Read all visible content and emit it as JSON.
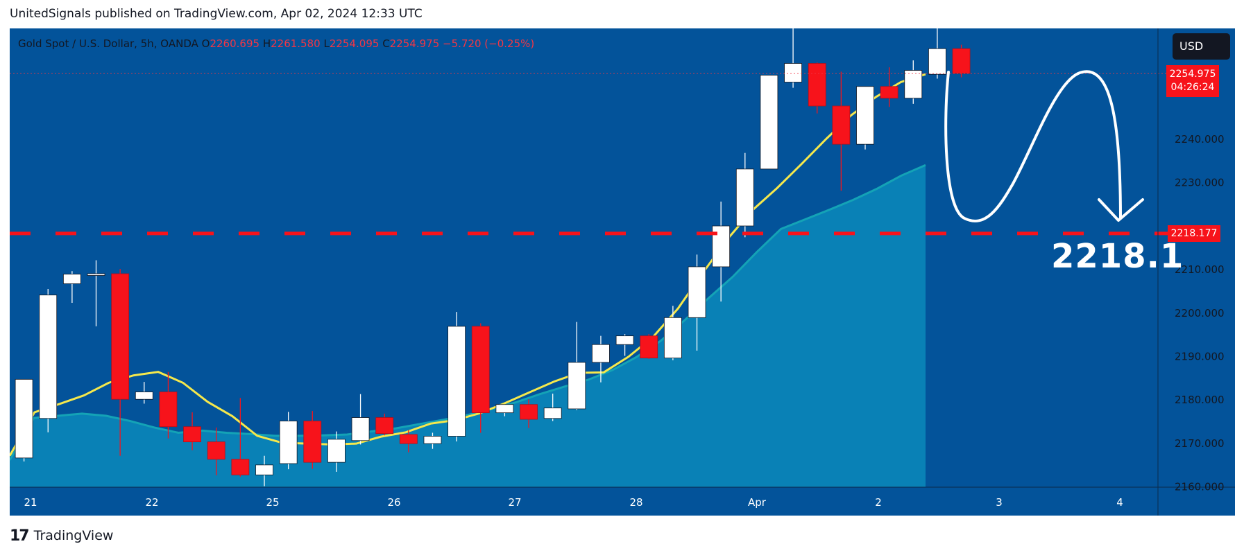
{
  "header": {
    "published_line": "UnitedSignals published on TradingView.com, Apr 02, 2024 12:33 UTC"
  },
  "legend": {
    "symbol": "Gold Spot / U.S. Dollar, 5h, OANDA",
    "open_key": "O",
    "open": "2260.695",
    "high_key": "H",
    "high": "2261.580",
    "low_key": "L",
    "low": "2254.095",
    "close_key": "C",
    "close": "2254.975",
    "change": "−5.720 (−0.25%)"
  },
  "currency": "USD",
  "price_tag": {
    "price": "2254.975",
    "countdown": "04:26:24"
  },
  "level_tag": "2218.177",
  "target_label": "2218.1",
  "footer": {
    "brand_mark": "17",
    "brand": "TradingView"
  },
  "colors": {
    "background": "#03539a",
    "up": "#ffffff",
    "down": "#f7131b",
    "fast_ma": "#f5e84c",
    "slow_ma": "#14a3b6",
    "level_line": "#f7131b"
  },
  "chart_data": {
    "type": "candlestick",
    "symbol": "Gold Spot / U.S. Dollar",
    "timeframe": "5h",
    "x_ticks": [
      "21",
      "22",
      "25",
      "26",
      "27",
      "28",
      "Apr",
      "2",
      "3",
      "4"
    ],
    "y_ticks": [
      "2160.000",
      "2170.000",
      "2180.000",
      "2190.000",
      "2200.000",
      "2210.000",
      "2220.000",
      "2230.000",
      "2240.000",
      "2250.000"
    ],
    "ylim": [
      2160,
      2264
    ],
    "candles": [
      {
        "o": 2166.5,
        "h": 2184.6,
        "l": 2165.7,
        "c": 2184.6
      },
      {
        "o": 2175.6,
        "h": 2205.4,
        "l": 2172.4,
        "c": 2204.0
      },
      {
        "o": 2206.6,
        "h": 2209.5,
        "l": 2202.2,
        "c": 2208.8
      },
      {
        "o": 2208.5,
        "h": 2212.0,
        "l": 2196.8,
        "c": 2208.9
      },
      {
        "o": 2208.9,
        "h": 2210.0,
        "l": 2167.0,
        "c": 2180.0
      },
      {
        "o": 2180.0,
        "h": 2184.0,
        "l": 2179.0,
        "c": 2181.7
      },
      {
        "o": 2181.7,
        "h": 2186.3,
        "l": 2171.0,
        "c": 2173.7
      },
      {
        "o": 2173.7,
        "h": 2177.0,
        "l": 2168.3,
        "c": 2170.2
      },
      {
        "o": 2170.2,
        "h": 2173.5,
        "l": 2162.5,
        "c": 2166.2
      },
      {
        "o": 2166.2,
        "h": 2180.3,
        "l": 2162.2,
        "c": 2162.6
      },
      {
        "o": 2162.6,
        "h": 2167.0,
        "l": 2160.0,
        "c": 2164.9
      },
      {
        "o": 2165.2,
        "h": 2177.1,
        "l": 2163.9,
        "c": 2175.0
      },
      {
        "o": 2175.0,
        "h": 2177.3,
        "l": 2164.0,
        "c": 2165.5
      },
      {
        "o": 2165.5,
        "h": 2172.6,
        "l": 2163.3,
        "c": 2170.8
      },
      {
        "o": 2170.5,
        "h": 2181.2,
        "l": 2169.6,
        "c": 2175.8
      },
      {
        "o": 2175.8,
        "h": 2176.7,
        "l": 2171.7,
        "c": 2172.1
      },
      {
        "o": 2171.9,
        "h": 2172.9,
        "l": 2167.8,
        "c": 2169.8
      },
      {
        "o": 2169.8,
        "h": 2172.3,
        "l": 2168.6,
        "c": 2171.5
      },
      {
        "o": 2171.5,
        "h": 2200.1,
        "l": 2170.3,
        "c": 2196.8
      },
      {
        "o": 2196.8,
        "h": 2197.5,
        "l": 2172.3,
        "c": 2176.9
      },
      {
        "o": 2176.9,
        "h": 2178.8,
        "l": 2176.1,
        "c": 2178.8
      },
      {
        "o": 2178.8,
        "h": 2180.0,
        "l": 2173.4,
        "c": 2175.4
      },
      {
        "o": 2175.6,
        "h": 2181.3,
        "l": 2175.0,
        "c": 2178.0
      },
      {
        "o": 2177.8,
        "h": 2197.8,
        "l": 2177.5,
        "c": 2188.5
      },
      {
        "o": 2188.5,
        "h": 2194.6,
        "l": 2183.9,
        "c": 2192.6
      },
      {
        "o": 2192.6,
        "h": 2195.0,
        "l": 2190.0,
        "c": 2194.6
      },
      {
        "o": 2194.6,
        "h": 2195.0,
        "l": 2189.3,
        "c": 2189.5
      },
      {
        "o": 2189.5,
        "h": 2201.5,
        "l": 2189.0,
        "c": 2198.8
      },
      {
        "o": 2198.8,
        "h": 2213.3,
        "l": 2191.2,
        "c": 2210.5
      },
      {
        "o": 2210.5,
        "h": 2225.5,
        "l": 2202.5,
        "c": 2219.9
      },
      {
        "o": 2219.9,
        "h": 2236.7,
        "l": 2217.3,
        "c": 2233.0
      },
      {
        "o": 2233.0,
        "h": 2254.6,
        "l": 2233.0,
        "c": 2254.6
      },
      {
        "o": 2253.0,
        "h": 2265.5,
        "l": 2251.7,
        "c": 2257.3
      },
      {
        "o": 2257.3,
        "h": 2257.5,
        "l": 2245.8,
        "c": 2247.5
      },
      {
        "o": 2247.5,
        "h": 2255.4,
        "l": 2228.0,
        "c": 2238.7
      },
      {
        "o": 2238.7,
        "h": 2252.0,
        "l": 2237.5,
        "c": 2252.0
      },
      {
        "o": 2252.0,
        "h": 2256.4,
        "l": 2247.3,
        "c": 2249.3
      },
      {
        "o": 2249.3,
        "h": 2258.0,
        "l": 2248.0,
        "c": 2255.7
      },
      {
        "o": 2254.8,
        "h": 2265.8,
        "l": 2253.8,
        "c": 2260.7
      },
      {
        "o": 2260.7,
        "h": 2261.6,
        "l": 2254.1,
        "c": 2255.0
      }
    ],
    "fast_ma": [
      2167.0,
      2177.0,
      2178.9,
      2180.9,
      2183.8,
      2185.5,
      2186.3,
      2183.8,
      2179.4,
      2176.1,
      2171.6,
      2170.0,
      2169.8,
      2169.6,
      2169.8,
      2171.4,
      2172.4,
      2174.4,
      2175.2,
      2176.8,
      2179.1,
      2181.6,
      2184.1,
      2186.1,
      2186.2,
      2189.8,
      2194.4,
      2200.9,
      2209.1,
      2216.9,
      2223.5,
      2228.6,
      2234.2,
      2240.0,
      2245.4,
      2249.6,
      2253.0,
      2254.8
    ],
    "slow_ma": [
      2166.0,
      2175.7,
      2176.2,
      2176.7,
      2176.2,
      2175.0,
      2173.5,
      2172.3,
      2172.8,
      2172.3,
      2172.0,
      2171.6,
      2171.6,
      2171.7,
      2171.9,
      2172.6,
      2173.3,
      2174.3,
      2175.3,
      2176.4,
      2177.8,
      2179.3,
      2181.2,
      2182.9,
      2184.5,
      2186.7,
      2189.7,
      2193.4,
      2198.2,
      2203.3,
      2208.2,
      2213.9,
      2219.2,
      2221.4,
      2223.6,
      2225.9,
      2228.5,
      2231.5,
      2233.9
    ],
    "horizontal_level": 2218.177,
    "last_price": 2254.975,
    "target": 2218.1
  }
}
